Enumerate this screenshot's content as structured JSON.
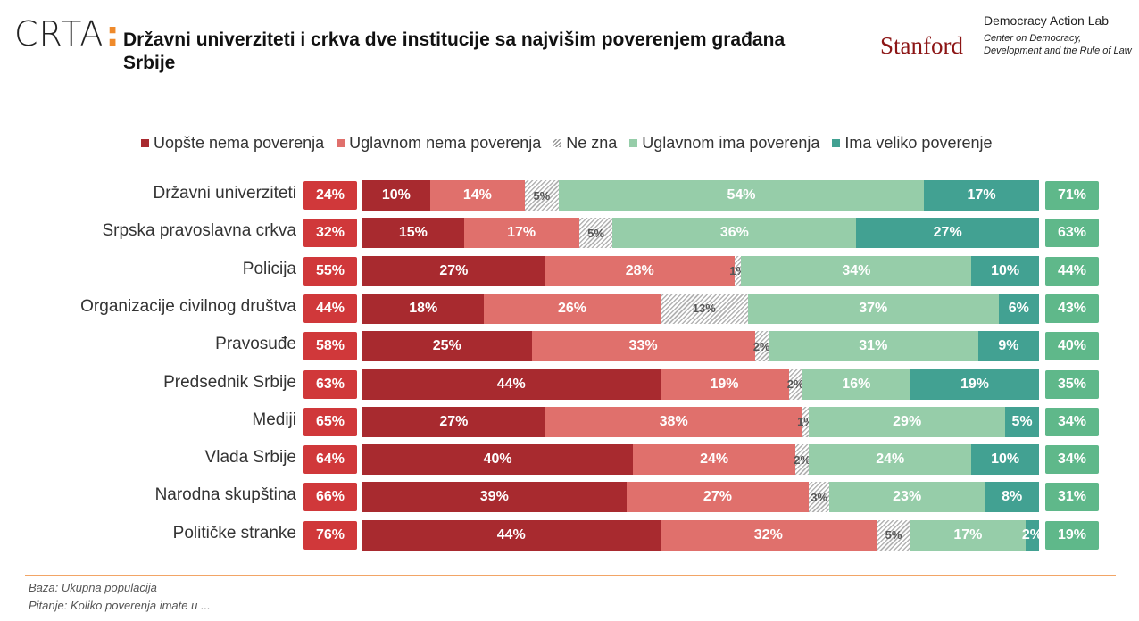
{
  "header": {
    "logo_text": "CRTA",
    "logo_colon": ":",
    "title": "Državni univerziteti i crkva dve institucije sa najvišim poverenjem građana Srbije",
    "stanford": "Stanford",
    "lab_title": "Democracy Action Lab",
    "lab_subtitle": "Center on Democracy, Development and the Rule of Law"
  },
  "colors": {
    "uopste": "#a82a2f",
    "uglavnom_nema": "#e0706c",
    "ne_zna": "#cccccc",
    "uglavnom_ima": "#96cda9",
    "veliko": "#42a192",
    "neg_total": "#d0383a",
    "pos_total": "#5fb88a"
  },
  "chart_data": {
    "type": "bar",
    "stacked": true,
    "orientation": "horizontal",
    "legend_position": "top",
    "categories": [
      "Državni univerziteti",
      "Srpska pravoslavna crkva",
      "Policija",
      "Organizacije civilnog društva",
      "Pravosuđe",
      "Predsednik Srbije",
      "Mediji",
      "Vlada Srbije",
      "Narodna skupština",
      "Političke stranke"
    ],
    "series": [
      {
        "name": "Uopšte nema poverenja",
        "values": [
          10,
          15,
          27,
          18,
          25,
          44,
          27,
          40,
          39,
          44
        ]
      },
      {
        "name": "Uglavnom nema poverenja",
        "values": [
          14,
          17,
          28,
          26,
          33,
          19,
          38,
          24,
          27,
          32
        ]
      },
      {
        "name": "Ne zna",
        "values": [
          5,
          5,
          1,
          13,
          2,
          2,
          1,
          2,
          3,
          5
        ]
      },
      {
        "name": "Uglavnom ima poverenja",
        "values": [
          54,
          36,
          34,
          37,
          31,
          16,
          29,
          24,
          23,
          17
        ]
      },
      {
        "name": "Ima veliko poverenje",
        "values": [
          17,
          27,
          10,
          6,
          9,
          19,
          5,
          10,
          8,
          2
        ]
      }
    ],
    "negative_totals": [
      24,
      32,
      55,
      44,
      58,
      63,
      65,
      64,
      66,
      76
    ],
    "positive_totals": [
      71,
      63,
      44,
      43,
      40,
      35,
      34,
      34,
      31,
      19
    ],
    "unit": "%"
  },
  "footer": {
    "baza": "Baza: Ukupna populacija",
    "pitanje": "Pitanje: Koliko poverenja imate u ..."
  }
}
